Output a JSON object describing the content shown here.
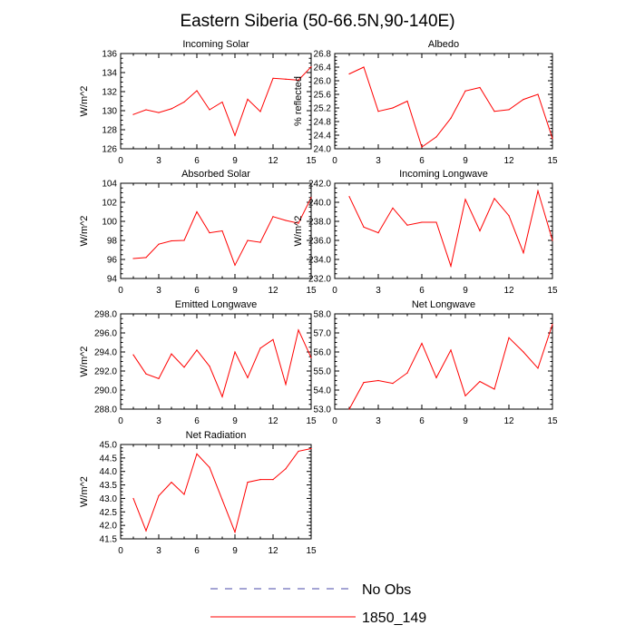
{
  "title": "Eastern Siberia (50-66.5N,90-140E)",
  "legend": {
    "placement": "bottom-center",
    "entries": [
      {
        "label": "No Obs",
        "color": "#4a4aa8",
        "dash": "dashed"
      },
      {
        "label": "1850_149",
        "color": "#ff0000",
        "dash": "solid"
      }
    ]
  },
  "chart_data": [
    {
      "type": "line",
      "title": "Incoming Solar",
      "ylabel": "W/m^2",
      "xlim": [
        0,
        15
      ],
      "ylim": [
        126,
        136
      ],
      "xticks": [
        0,
        3,
        6,
        9,
        12,
        15
      ],
      "xtick_labels": [
        "0",
        "3",
        "6",
        "9",
        "12",
        "15"
      ],
      "yticks": [
        126,
        128,
        130,
        132,
        134,
        136
      ],
      "ytick_labels": [
        "126",
        "128",
        "130",
        "132",
        "134",
        "136"
      ],
      "series": [
        {
          "name": "1850_149",
          "color": "#ff0000",
          "x": [
            1,
            2,
            3,
            4,
            5,
            6,
            7,
            8,
            9,
            10,
            11,
            12,
            13,
            14,
            15
          ],
          "values": [
            129.6,
            130.1,
            129.8,
            130.2,
            130.9,
            132.1,
            130.1,
            130.9,
            127.4,
            131.2,
            129.9,
            133.4,
            133.3,
            133.2,
            134.6
          ]
        }
      ]
    },
    {
      "type": "line",
      "title": "Albedo",
      "ylabel": "% reflected",
      "xlim": [
        0,
        15
      ],
      "ylim": [
        24.0,
        26.8
      ],
      "xticks": [
        0,
        3,
        6,
        9,
        12,
        15
      ],
      "xtick_labels": [
        "0",
        "3",
        "6",
        "9",
        "12",
        "15"
      ],
      "yticks": [
        24.0,
        24.4,
        24.8,
        25.2,
        25.6,
        26.0,
        26.4,
        26.8
      ],
      "ytick_labels": [
        "24.0",
        "24.4",
        "24.8",
        "25.2",
        "25.6",
        "26.0",
        "26.4",
        "26.8"
      ],
      "series": [
        {
          "name": "1850_149",
          "color": "#ff0000",
          "x": [
            1,
            2,
            3,
            4,
            5,
            6,
            7,
            8,
            9,
            10,
            11,
            12,
            13,
            14,
            15
          ],
          "values": [
            26.2,
            26.4,
            25.1,
            25.2,
            25.4,
            24.05,
            24.35,
            24.9,
            25.7,
            25.8,
            25.1,
            25.15,
            25.45,
            25.6,
            24.3
          ]
        }
      ]
    },
    {
      "type": "line",
      "title": "Absorbed Solar",
      "ylabel": "W/m^2",
      "xlim": [
        0,
        15
      ],
      "ylim": [
        94,
        104
      ],
      "xticks": [
        0,
        3,
        6,
        9,
        12,
        15
      ],
      "xtick_labels": [
        "0",
        "3",
        "6",
        "9",
        "12",
        "15"
      ],
      "yticks": [
        94,
        96,
        98,
        100,
        102,
        104
      ],
      "ytick_labels": [
        "94",
        "96",
        "98",
        "100",
        "102",
        "104"
      ],
      "series": [
        {
          "name": "1850_149",
          "color": "#ff0000",
          "x": [
            1,
            2,
            3,
            4,
            5,
            6,
            7,
            8,
            9,
            10,
            11,
            12,
            13,
            14,
            15
          ],
          "values": [
            96.1,
            96.2,
            97.6,
            97.95,
            98.0,
            101.0,
            98.8,
            99.0,
            95.4,
            98.0,
            97.8,
            100.5,
            100.1,
            99.8,
            102.5
          ]
        }
      ]
    },
    {
      "type": "line",
      "title": "Incoming Longwave",
      "ylabel": "W/m^2",
      "xlim": [
        0,
        15
      ],
      "ylim": [
        232,
        242
      ],
      "xticks": [
        0,
        3,
        6,
        9,
        12,
        15
      ],
      "xtick_labels": [
        "0",
        "3",
        "6",
        "9",
        "12",
        "15"
      ],
      "yticks": [
        232,
        234,
        236,
        238,
        240,
        242
      ],
      "ytick_labels": [
        "232.0",
        "234.0",
        "236.0",
        "238.0",
        "240.0",
        "242.0"
      ],
      "series": [
        {
          "name": "1850_149",
          "color": "#ff0000",
          "x": [
            1,
            2,
            3,
            4,
            5,
            6,
            7,
            8,
            9,
            10,
            11,
            12,
            13,
            14,
            15
          ],
          "values": [
            240.6,
            237.4,
            236.8,
            239.4,
            237.6,
            237.9,
            237.9,
            233.3,
            240.3,
            237.0,
            240.4,
            238.6,
            234.7,
            241.2,
            236.0
          ]
        }
      ]
    },
    {
      "type": "line",
      "title": "Emitted Longwave",
      "ylabel": "W/m^2",
      "xlim": [
        0,
        15
      ],
      "ylim": [
        288,
        298
      ],
      "xticks": [
        0,
        3,
        6,
        9,
        12,
        15
      ],
      "xtick_labels": [
        "0",
        "3",
        "6",
        "9",
        "12",
        "15"
      ],
      "yticks": [
        288,
        290,
        292,
        294,
        296,
        298
      ],
      "ytick_labels": [
        "288.0",
        "290.0",
        "292.0",
        "294.0",
        "296.0",
        "298.0"
      ],
      "series": [
        {
          "name": "1850_149",
          "color": "#ff0000",
          "x": [
            1,
            2,
            3,
            4,
            5,
            6,
            7,
            8,
            9,
            10,
            11,
            12,
            13,
            14,
            15
          ],
          "values": [
            293.7,
            291.7,
            291.2,
            293.8,
            292.4,
            294.2,
            292.5,
            289.3,
            294.0,
            291.3,
            294.4,
            295.3,
            290.6,
            296.3,
            293.4
          ]
        }
      ]
    },
    {
      "type": "line",
      "title": "Net Longwave",
      "ylabel": "",
      "xlim": [
        0,
        15
      ],
      "ylim": [
        53,
        58
      ],
      "xticks": [
        0,
        3,
        6,
        9,
        12,
        15
      ],
      "xtick_labels": [
        "0",
        "3",
        "6",
        "9",
        "12",
        "15"
      ],
      "yticks": [
        53,
        54,
        55,
        56,
        57,
        58
      ],
      "ytick_labels": [
        "53.0",
        "54.0",
        "55.0",
        "56.0",
        "57.0",
        "58.0"
      ],
      "series": [
        {
          "name": "1850_149",
          "color": "#ff0000",
          "x": [
            1,
            2,
            3,
            4,
            5,
            6,
            7,
            8,
            9,
            10,
            11,
            12,
            13,
            14,
            15
          ],
          "values": [
            53.0,
            54.4,
            54.5,
            54.35,
            54.9,
            56.45,
            54.65,
            56.1,
            53.7,
            54.45,
            54.05,
            56.75,
            56.0,
            55.15,
            57.45
          ]
        }
      ]
    },
    {
      "type": "line",
      "title": "Net Radiation",
      "ylabel": "W/m^2",
      "xlim": [
        0,
        15
      ],
      "ylim": [
        41.5,
        45.0
      ],
      "xticks": [
        0,
        3,
        6,
        9,
        12,
        15
      ],
      "xtick_labels": [
        "0",
        "3",
        "6",
        "9",
        "12",
        "15"
      ],
      "yticks": [
        41.5,
        42.0,
        42.5,
        43.0,
        43.5,
        44.0,
        44.5,
        45.0
      ],
      "ytick_labels": [
        "41.5",
        "42.0",
        "42.5",
        "43.0",
        "43.5",
        "44.0",
        "44.5",
        "45.0"
      ],
      "series": [
        {
          "name": "1850_149",
          "color": "#ff0000",
          "x": [
            1,
            2,
            3,
            4,
            5,
            6,
            7,
            8,
            9,
            10,
            11,
            12,
            13,
            14,
            15
          ],
          "values": [
            43.0,
            41.8,
            43.1,
            43.6,
            43.15,
            44.65,
            44.15,
            42.95,
            41.75,
            43.6,
            43.7,
            43.7,
            44.1,
            44.75,
            44.85
          ]
        }
      ]
    }
  ]
}
